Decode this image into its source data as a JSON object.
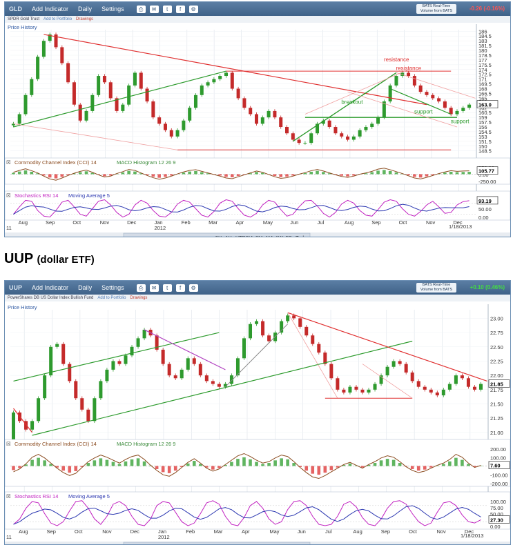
{
  "gld": {
    "toolbar": {
      "symbol": "GLD",
      "add_indicator": "Add Indicator",
      "period": "Daily",
      "settings": "Settings",
      "realtime": "BATS Real-Time",
      "realtime_sub": "Volume from BATS",
      "change": "-0.26 (-0.16%)",
      "change_color": "#ff5555"
    },
    "subbar": {
      "name": "SPDR Gold Trust",
      "add_portfolio": "Add to Portfolio",
      "drawings": "Drawings"
    },
    "chart_data": {
      "type": "candlestick",
      "title": "Price History",
      "price_axis": [
        186.0,
        184.5,
        183.0,
        181.5,
        180.0,
        178.5,
        177.0,
        175.5,
        174.0,
        172.5,
        171.0,
        169.5,
        168.0,
        166.5,
        165.0,
        163.5,
        162.0,
        160.5,
        159.0,
        157.5,
        156.0,
        154.5,
        153.0,
        151.5,
        150.0,
        148.5
      ],
      "ylim": [
        148.0,
        186.5
      ],
      "last_value": "163.0",
      "months": [
        "Aug",
        "Sep",
        "Oct",
        "Nov",
        "Dec",
        "Jan",
        "Feb",
        "Mar",
        "Apr",
        "May",
        "Jun",
        "Jul",
        "Aug",
        "Sep",
        "Oct",
        "Nov",
        "Dec"
      ],
      "year_label": "2012",
      "start_label": "11",
      "date_label": "1/18/2013",
      "closes": [
        157,
        160,
        166,
        171,
        178,
        183,
        185,
        181,
        176,
        170,
        163,
        158,
        161,
        166,
        172,
        170,
        165,
        161,
        163,
        169,
        173,
        168,
        164,
        159,
        157,
        155,
        153,
        155,
        158,
        162,
        166,
        169,
        170,
        171,
        172,
        173,
        168,
        165,
        162,
        160,
        157,
        159,
        161,
        159,
        156,
        154,
        152,
        151,
        151,
        154,
        157,
        158,
        156,
        154,
        153,
        152,
        153,
        155,
        156,
        157,
        159,
        164,
        169,
        172,
        173,
        172,
        169,
        167,
        166,
        165,
        164,
        162,
        160,
        161,
        162,
        163
      ],
      "annotations": [
        "resistance",
        "resistance",
        "breakout",
        "support",
        "support"
      ],
      "annotation_colors": [
        "#e03030",
        "#e03030",
        "#2d9b2d",
        "#2d9b2d",
        "#2d9b2d"
      ],
      "cci": {
        "label": "Commodity Channel Index (CCI) 14",
        "macd_label": "MACD Histogram 12 26 9",
        "axis": [
          "250.00",
          "0.00",
          "-250.00"
        ],
        "last": "105.77",
        "values": [
          60,
          120,
          170,
          110,
          40,
          -60,
          -150,
          -190,
          -120,
          -40,
          30,
          90,
          130,
          60,
          -20,
          -90,
          -60,
          20,
          80,
          150,
          120,
          40,
          -40,
          -110,
          -160,
          -120,
          -60,
          10,
          70,
          120,
          140,
          90,
          40,
          -10,
          -60,
          -120,
          -140,
          -80,
          -20,
          40,
          100,
          60,
          -10,
          -80,
          -130,
          -110,
          -60,
          0,
          50,
          110,
          150,
          100,
          40,
          -20,
          -70,
          -100,
          -60,
          0,
          40,
          90,
          160,
          190,
          140,
          80,
          20,
          -50,
          -120,
          -150,
          -100,
          -40,
          20,
          70,
          110,
          90,
          100,
          106
        ]
      },
      "stoch": {
        "label": "Stochastics RSI 14",
        "ma_label": "Moving Average 5",
        "axis": [
          "100.00",
          "50.00",
          "0.00"
        ],
        "last": "93.19",
        "values": [
          20,
          60,
          95,
          90,
          40,
          10,
          5,
          40,
          85,
          95,
          60,
          20,
          10,
          50,
          90,
          98,
          70,
          30,
          5,
          20,
          70,
          95,
          80,
          40,
          10,
          5,
          30,
          75,
          95,
          85,
          50,
          15,
          5,
          35,
          80,
          98,
          90,
          50,
          15,
          5,
          25,
          70,
          95,
          85,
          45,
          10,
          20,
          60,
          92,
          95,
          65,
          25,
          5,
          30,
          75,
          95,
          80,
          40,
          15,
          10,
          45,
          85,
          98,
          90,
          50,
          20,
          10,
          35,
          70,
          90,
          60,
          25,
          30,
          70,
          88,
          93
        ]
      },
      "nav": [
        "5Y",
        "1Y",
        "YTD",
        "6M",
        "3M",
        "1M",
        "1W",
        "5D",
        "Today"
      ]
    }
  },
  "uup_heading": {
    "title": "UUP",
    "subtitle": "(dollar ETF)"
  },
  "uup": {
    "toolbar": {
      "symbol": "UUP",
      "add_indicator": "Add Indicator",
      "period": "Daily",
      "settings": "Settings",
      "realtime": "BATS Real-Time",
      "realtime_sub": "Volume from BATS",
      "change": "+0.10 (0.46%)",
      "change_color": "#44dd44"
    },
    "subbar": {
      "name": "PowerShares DB US Dollar Index Bullish Fund",
      "add_portfolio": "Add to Portfolio",
      "drawings": "Drawings"
    },
    "chart_data": {
      "type": "candlestick",
      "title": "Price History",
      "price_axis": [
        23.0,
        22.75,
        22.5,
        22.25,
        22.0,
        21.75,
        21.5,
        21.25,
        21.0
      ],
      "price_axis_labels": [
        "23.00",
        "22.75",
        "22.50",
        "22.25",
        "22.00",
        "21.75",
        "21.50",
        "21.25",
        "21.00"
      ],
      "ylim": [
        20.95,
        23.15
      ],
      "last_value": "21.85",
      "months": [
        "Aug",
        "Sep",
        "Oct",
        "Nov",
        "Dec",
        "Jan",
        "Feb",
        "Mar",
        "Apr",
        "May",
        "Jun",
        "Jul",
        "Aug",
        "Sep",
        "Oct",
        "Nov",
        "Dec"
      ],
      "year_label": "2012",
      "start_label": "11",
      "date_label": "1/18/2013",
      "closes": [
        21.35,
        21.2,
        21.05,
        21.2,
        21.6,
        22.0,
        22.5,
        22.55,
        22.2,
        21.9,
        21.6,
        21.4,
        21.2,
        21.6,
        21.9,
        22.1,
        22.25,
        22.2,
        22.35,
        22.5,
        22.65,
        22.8,
        22.7,
        22.45,
        22.2,
        22.0,
        21.95,
        22.1,
        22.3,
        22.2,
        22.0,
        21.9,
        21.85,
        21.8,
        21.85,
        22.0,
        22.3,
        22.65,
        22.9,
        22.95,
        22.7,
        22.6,
        22.75,
        22.95,
        23.05,
        23.0,
        22.85,
        22.7,
        22.55,
        22.4,
        22.2,
        21.95,
        21.75,
        21.7,
        21.8,
        21.75,
        21.7,
        21.75,
        21.85,
        22.0,
        22.15,
        22.25,
        22.2,
        22.05,
        21.9,
        21.8,
        21.75,
        21.7,
        21.65,
        21.75,
        21.85,
        22.0,
        21.95,
        21.8,
        21.75,
        21.85
      ]
    },
    "cci": {
      "label": "Commodity Channel Index (CCI) 14",
      "macd_label": "MACD Histogram 12 26 9",
      "axis": [
        "200.00",
        "100.00",
        "7.60",
        "-100.00",
        "-200.00"
      ],
      "last": "7.60",
      "values": [
        -80,
        -40,
        30,
        120,
        160,
        110,
        40,
        -30,
        -90,
        -130,
        -100,
        -20,
        60,
        110,
        150,
        120,
        80,
        40,
        90,
        130,
        150,
        90,
        10,
        -60,
        -120,
        -140,
        -90,
        -20,
        50,
        100,
        40,
        -30,
        -70,
        -40,
        20,
        80,
        140,
        170,
        130,
        80,
        40,
        60,
        110,
        150,
        130,
        60,
        -20,
        -90,
        -150,
        -170,
        -130,
        -80,
        -30,
        20,
        50,
        10,
        -30,
        20,
        60,
        110,
        140,
        120,
        60,
        -10,
        -60,
        -90,
        -70,
        -30,
        10,
        40,
        90,
        160,
        120,
        40,
        -20,
        8
      ]
    },
    "stoch": {
      "label": "Stochastics RSI 14",
      "ma_label": "Moving Average 5",
      "axis": [
        "100.00",
        "75.00",
        "50.00",
        "25.00",
        "0.00"
      ],
      "last": "27.30",
      "values": [
        10,
        30,
        70,
        95,
        90,
        50,
        15,
        5,
        20,
        60,
        95,
        98,
        70,
        30,
        10,
        40,
        85,
        95,
        80,
        40,
        10,
        5,
        30,
        80,
        95,
        90,
        55,
        20,
        5,
        15,
        50,
        90,
        98,
        85,
        40,
        10,
        5,
        35,
        80,
        95,
        70,
        30,
        10,
        20,
        65,
        95,
        98,
        80,
        40,
        10,
        5,
        10,
        40,
        85,
        95,
        75,
        35,
        10,
        5,
        30,
        70,
        95,
        98,
        85,
        50,
        20,
        5,
        15,
        55,
        90,
        95,
        80,
        45,
        20,
        15,
        27
      ]
    },
    "nav": [
      "5Y",
      "1Y",
      "YTD",
      "6M",
      "3M",
      "1M",
      "1W",
      "5D",
      "Today"
    ]
  }
}
